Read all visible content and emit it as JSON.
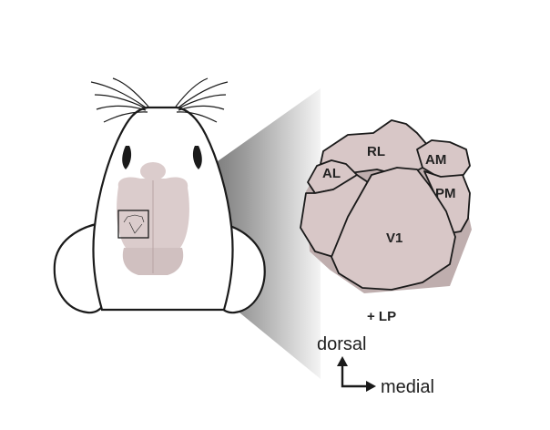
{
  "colors": {
    "tissue": "#d8c7c7",
    "tissue_shade": "#bfaeae",
    "outline": "#1a1a1a",
    "cone_light": "#f2f2f2",
    "cone_dark": "#4a4a4a",
    "text": "#222222"
  },
  "areas": {
    "rl": "RL",
    "am": "AM",
    "al": "AL",
    "pm": "PM",
    "v1": "V1"
  },
  "extra_area": "+ LP",
  "axes": {
    "vertical": "dorsal",
    "horizontal": "medial"
  }
}
